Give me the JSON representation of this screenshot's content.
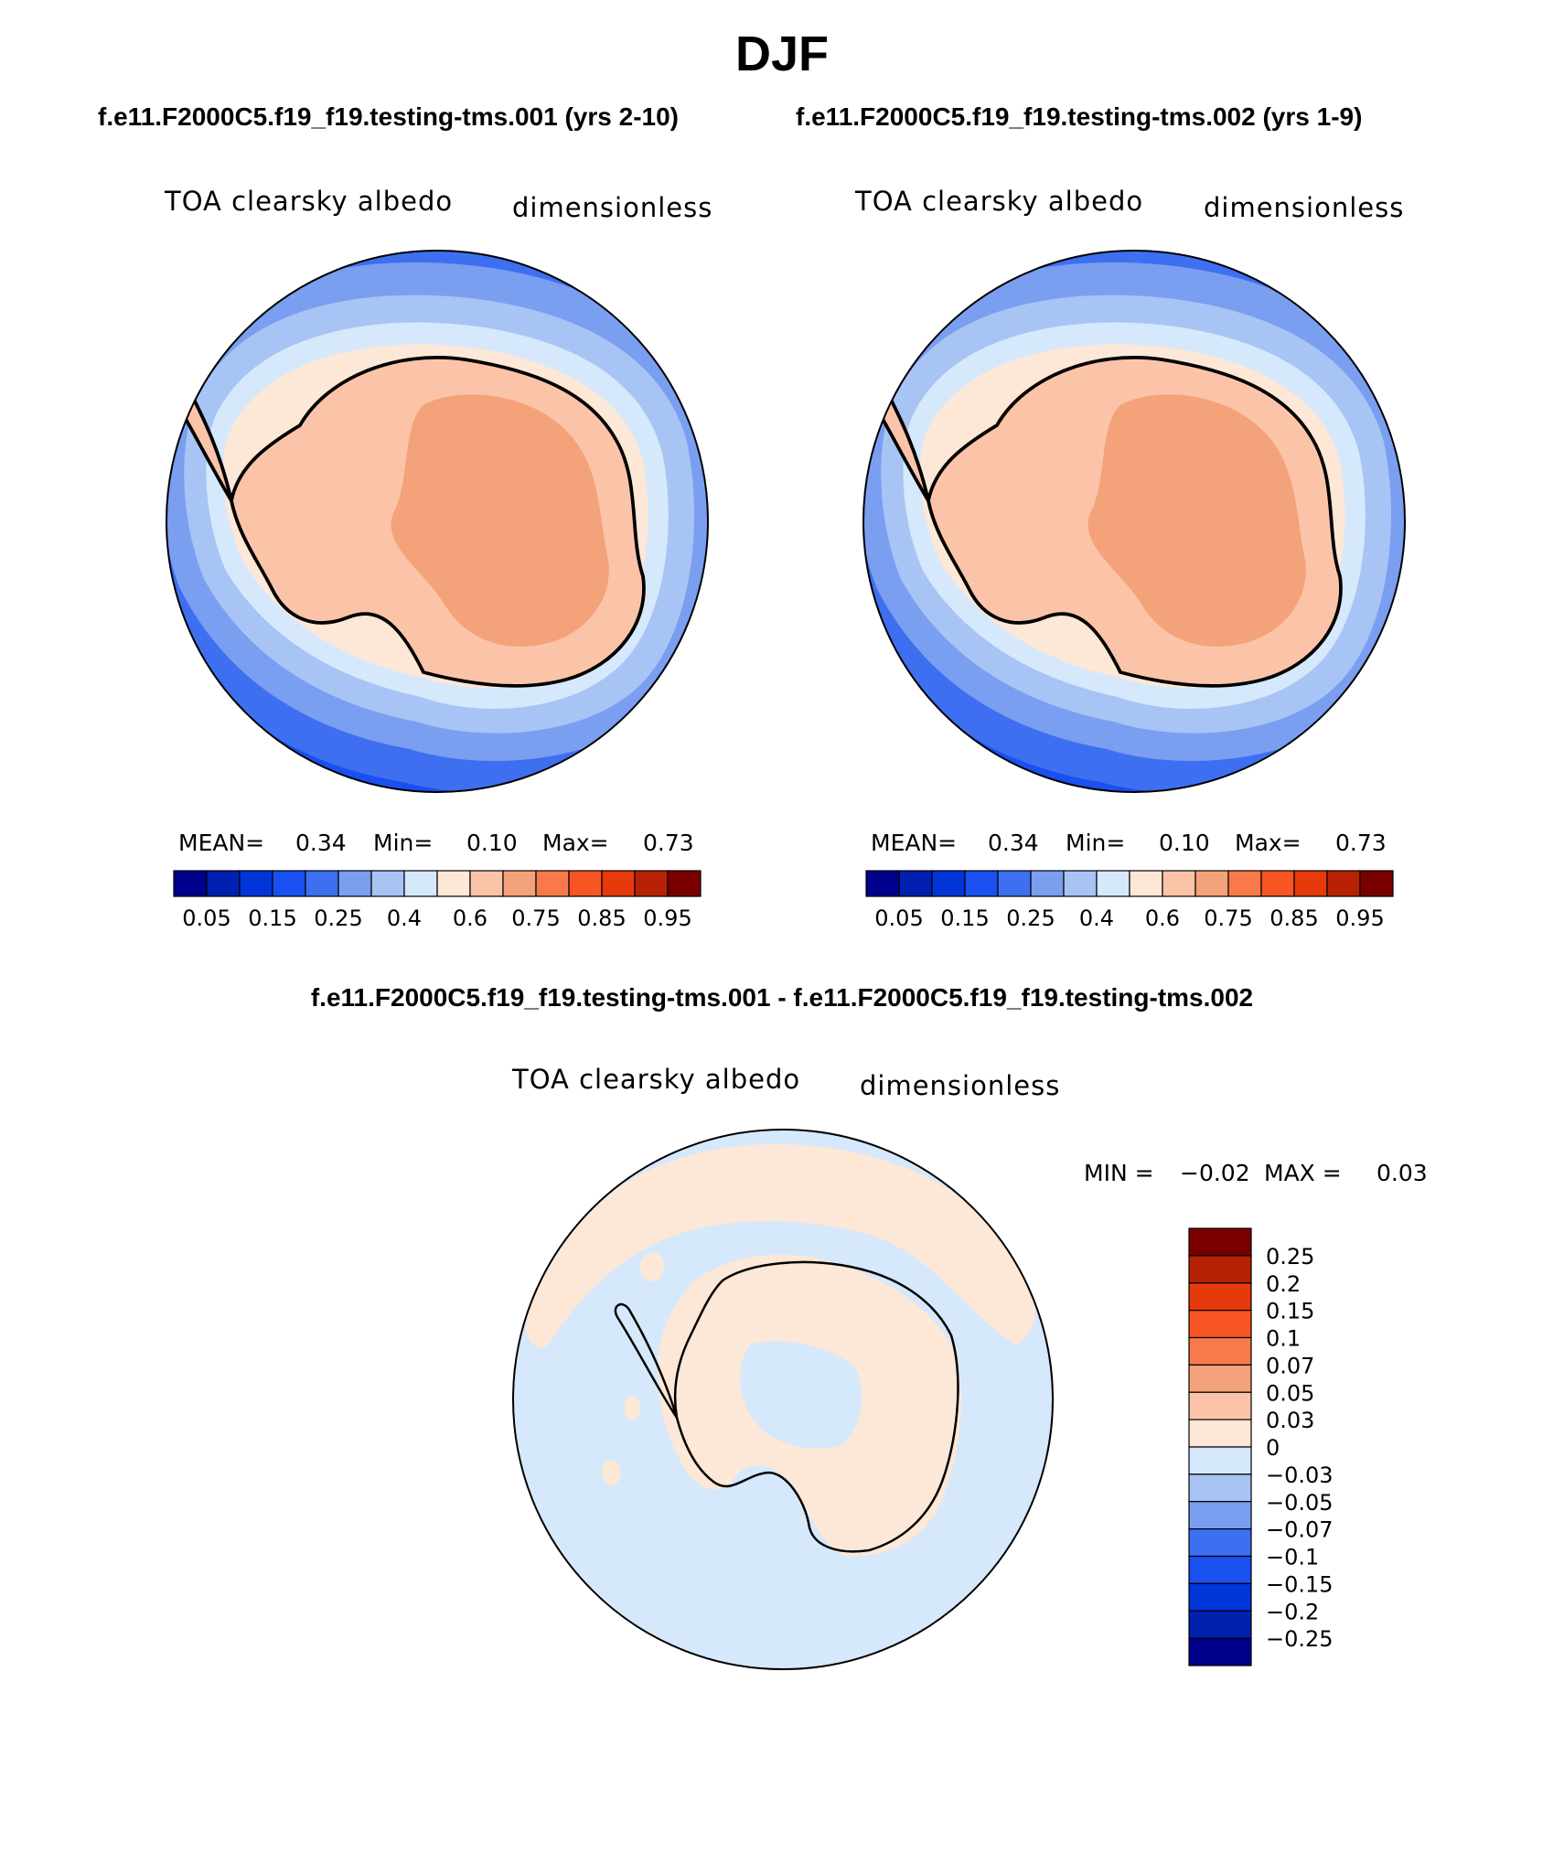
{
  "title": "DJF",
  "case_titles": {
    "left": "f.e11.F2000C5.f19_f19.testing-tms.001 (yrs 2-10)",
    "right": "f.e11.F2000C5.f19_f19.testing-tms.002 (yrs 1-9)"
  },
  "diff_title": "f.e11.F2000C5.f19_f19.testing-tms.001 - f.e11.F2000C5.f19_f19.testing-tms.002",
  "panels": [
    {
      "variable": "TOA clearsky albedo",
      "units": "dimensionless",
      "stats": {
        "mean_label": "MEAN=",
        "mean": "0.34",
        "min_label": "Min=",
        "min": "0.10",
        "max_label": "Max=",
        "max": "0.73"
      }
    },
    {
      "variable": "TOA clearsky albedo",
      "units": "dimensionless",
      "stats": {
        "mean_label": "MEAN=",
        "mean": "0.34",
        "min_label": "Min=",
        "min": "0.10",
        "max_label": "Max=",
        "max": "0.73"
      }
    },
    {
      "variable": "TOA clearsky albedo",
      "units": "dimensionless",
      "stats": {
        "min_label": "MIN =",
        "min": "−0.02",
        "max_label": "MAX =",
        "max": "0.03"
      }
    }
  ],
  "colorbar_abs": {
    "colors": [
      "#00008b",
      "#0020b0",
      "#0035d8",
      "#1a4ff0",
      "#3d6ff0",
      "#7a9ef0",
      "#a8c4f5",
      "#d6e8fb",
      "#fde7d6",
      "#fbc4a8",
      "#f4a27a",
      "#f87a4a",
      "#f85525",
      "#e63a0c",
      "#b82204",
      "#7a0000"
    ],
    "labels": [
      "0.05",
      "0.15",
      "0.25",
      "0.4",
      "0.6",
      "0.75",
      "0.85",
      "0.95"
    ]
  },
  "colorbar_diff": {
    "colors": [
      "#7a0000",
      "#b82204",
      "#e63a0c",
      "#f85525",
      "#f87a4a",
      "#f4a27a",
      "#fbc4a8",
      "#fde7d6",
      "#d6e8fb",
      "#a8c4f5",
      "#7a9ef0",
      "#3d6ff0",
      "#1a4ff0",
      "#0035d8",
      "#0020b0",
      "#00008b"
    ],
    "labels": [
      "0.25",
      "0.2",
      "0.15",
      "0.1",
      "0.07",
      "0.05",
      "0.03",
      "0",
      "−0.03",
      "−0.05",
      "−0.07",
      "−0.1",
      "−0.15",
      "−0.2",
      "−0.25"
    ]
  }
}
